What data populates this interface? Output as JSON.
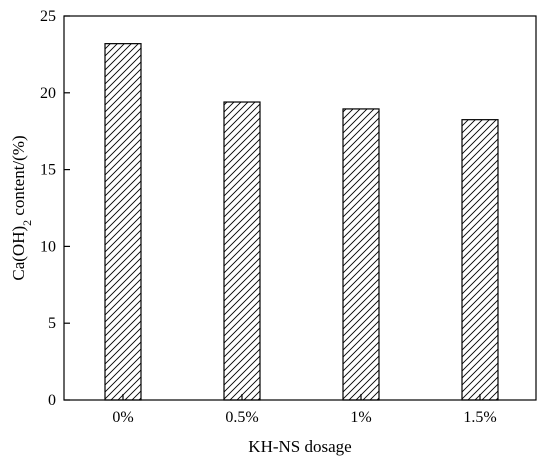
{
  "chart_data": {
    "type": "bar",
    "categories": [
      "0%",
      "0.5%",
      "1%",
      "1.5%"
    ],
    "values": [
      23.2,
      19.4,
      18.95,
      18.25
    ],
    "xlabel": "KH-NS dosage",
    "ylabel": {
      "prefix": "Ca(OH)",
      "subscript": "2",
      "suffix": " content/(%)"
    },
    "ylim": [
      0,
      25
    ],
    "yticks": [
      "0",
      "5",
      "10",
      "15",
      "20",
      "25"
    ],
    "ytick_values": [
      0,
      5,
      10,
      15,
      20,
      25
    ],
    "grid": false,
    "legend": "none",
    "bar_fill": "hatched",
    "colors": {
      "line": "#000000",
      "background": "#ffffff"
    }
  }
}
